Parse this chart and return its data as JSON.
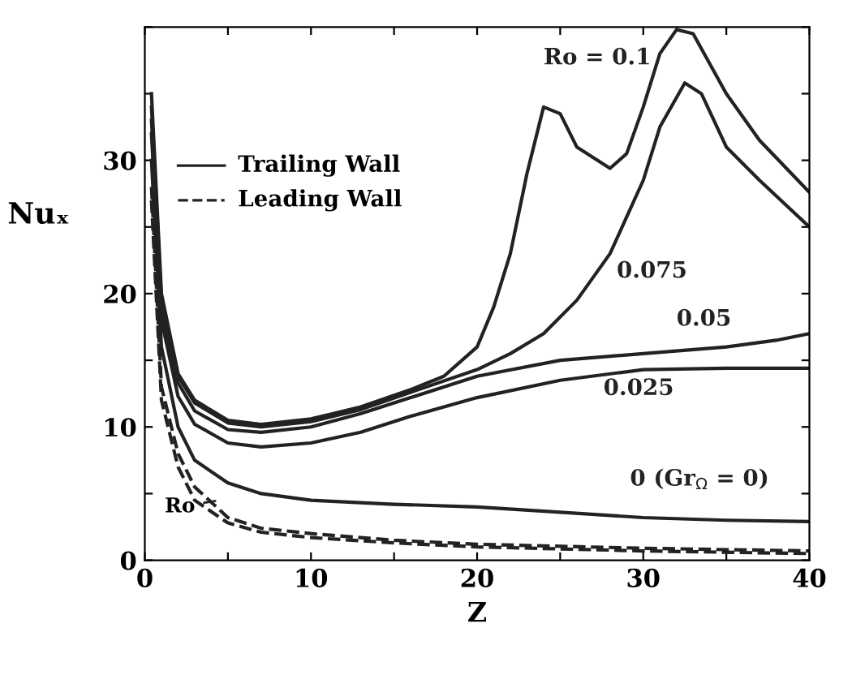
{
  "chart_data": {
    "type": "line",
    "xlabel": "Z",
    "ylabel": "Nuₓ",
    "xlim": [
      0,
      40
    ],
    "ylim": [
      0,
      40
    ],
    "xticks": [
      0,
      {
        "value": 5,
        "label": null
      },
      10,
      {
        "value": 15,
        "label": null
      },
      20,
      {
        "value": 25,
        "label": null
      },
      30,
      {
        "value": 35,
        "label": null
      },
      40
    ],
    "yticks": [
      0,
      {
        "value": 5,
        "label": null
      },
      10,
      {
        "value": 15,
        "label": null
      },
      20,
      {
        "value": 25,
        "label": null
      },
      30,
      {
        "value": 35,
        "label": null
      },
      {
        "value": 40,
        "label": null
      }
    ],
    "grid": false,
    "marker": "none",
    "series": [
      {
        "name": "Ro = 0.1",
        "color": "#222222",
        "line_style": "solid",
        "x": [
          0.4,
          1,
          2,
          3,
          5,
          7,
          10,
          13,
          16,
          18,
          20,
          21,
          22,
          23,
          24,
          25,
          26,
          28,
          29,
          30,
          31,
          32,
          33,
          35,
          37,
          40
        ],
        "values": [
          35,
          20,
          14,
          12,
          10.5,
          10.2,
          10.6,
          11.5,
          12.8,
          13.8,
          16,
          19,
          23,
          29,
          34,
          33.5,
          31,
          29.4,
          30.5,
          34,
          38,
          39.8,
          39.5,
          35,
          31.5,
          27.6
        ]
      },
      {
        "name": "0.075",
        "color": "#222222",
        "line_style": "solid",
        "x": [
          0.4,
          1,
          2,
          3,
          5,
          7,
          10,
          13,
          16,
          20,
          22,
          24,
          26,
          28,
          30,
          31,
          32.5,
          33.5,
          35,
          37,
          40
        ],
        "values": [
          34,
          19.5,
          13.8,
          11.8,
          10.3,
          10,
          10.4,
          11.3,
          12.6,
          14.3,
          15.5,
          17,
          19.5,
          23,
          28.5,
          32.5,
          35.8,
          35,
          31,
          28.5,
          25
        ]
      },
      {
        "name": "0.05",
        "color": "#222222",
        "line_style": "solid",
        "x": [
          0.4,
          1,
          2,
          3,
          5,
          7,
          10,
          13,
          16,
          20,
          25,
          30,
          35,
          38,
          40
        ],
        "values": [
          33,
          19,
          13.3,
          11.2,
          9.8,
          9.6,
          10,
          11,
          12.2,
          13.8,
          15,
          15.5,
          16,
          16.5,
          17
        ]
      },
      {
        "name": "0.025",
        "color": "#222222",
        "line_style": "solid",
        "x": [
          0.4,
          1,
          2,
          3,
          5,
          7,
          10,
          13,
          16,
          20,
          25,
          30,
          35,
          40
        ],
        "values": [
          32,
          18,
          12.3,
          10.2,
          8.8,
          8.5,
          8.8,
          9.6,
          10.8,
          12.2,
          13.5,
          14.3,
          14.4,
          14.4
        ]
      },
      {
        "name": "0 (Gr$_{Ω}$ = 0)",
        "color": "#222222",
        "line_style": "solid",
        "x": [
          0.4,
          1,
          2,
          3,
          5,
          7,
          10,
          15,
          20,
          25,
          30,
          35,
          40
        ],
        "values": [
          30,
          16,
          10,
          7.5,
          5.8,
          5,
          4.5,
          4.2,
          4,
          3.6,
          3.2,
          3,
          2.9
        ]
      },
      {
        "color": "#222222",
        "line_style": "dashed",
        "x": [
          0.4,
          1,
          2,
          3,
          5,
          7,
          10,
          15,
          20,
          30,
          40
        ],
        "values": [
          28,
          13,
          8,
          5.5,
          3.2,
          2.4,
          2,
          1.5,
          1.2,
          0.9,
          0.7
        ]
      },
      {
        "color": "#222222",
        "line_style": "dashed",
        "x": [
          0.4,
          1,
          2,
          3,
          5,
          7,
          10,
          15,
          20,
          30,
          40
        ],
        "values": [
          27,
          12,
          7,
          4.5,
          2.8,
          2.1,
          1.7,
          1.3,
          1,
          0.7,
          0.5
        ]
      }
    ],
    "annotations": [
      "Trailing Wall",
      "Leading Wall",
      "Ro"
    ]
  }
}
